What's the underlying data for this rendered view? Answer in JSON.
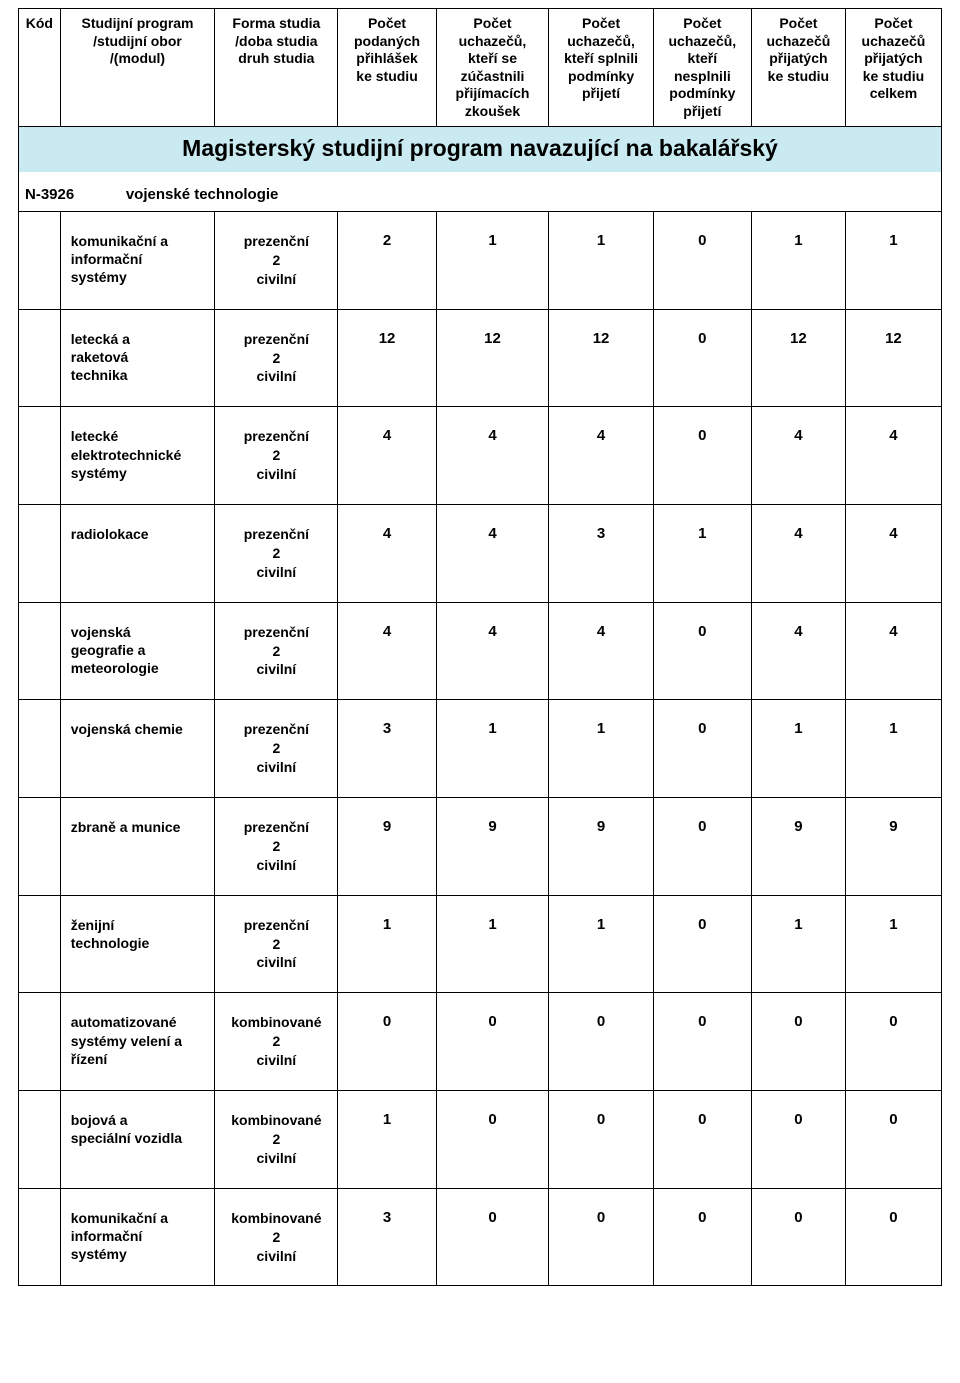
{
  "table": {
    "headers": [
      "Kód",
      "Studijní program\n/studijní obor\n/(modul)",
      "Forma studia\n/doba studia\ndruh studia",
      "Počet\npodaných\npřihlášek\nke studiu",
      "Počet\nuchazečů,\nkteří se\nzúčastnili\npřijímacích\nzkoušek",
      "Počet\nuchazečů,\nkteří splnili\npodmínky\npřijetí",
      "Počet\nuchazečů,\nkteří\nnesplnili\npodmínky\npřijetí",
      "Počet\nuchazečů\npřijatých\nke studiu",
      "Počet\nuchazečů\npřijatých\nke studiu\ncelkem"
    ],
    "section_title": "Magisterský studijní program navazující na bakalářský",
    "section_bg": "#c8eaf0",
    "program_code": "N-3926",
    "program_name": "vojenské technologie",
    "rows": [
      {
        "name": "komunikační a\ninformační\nsystémy",
        "form": "prezenční\n2\ncivilní",
        "vals": [
          "2",
          "1",
          "1",
          "0",
          "1",
          "1"
        ]
      },
      {
        "name": "letecká a\nraketová\ntechnika",
        "form": "prezenční\n2\ncivilní",
        "vals": [
          "12",
          "12",
          "12",
          "0",
          "12",
          "12"
        ]
      },
      {
        "name": "letecké\nelektrotechnické\nsystémy",
        "form": "prezenční\n2\ncivilní",
        "vals": [
          "4",
          "4",
          "4",
          "0",
          "4",
          "4"
        ]
      },
      {
        "name": "radiolokace",
        "form": "prezenční\n2\ncivilní",
        "vals": [
          "4",
          "4",
          "3",
          "1",
          "4",
          "4"
        ]
      },
      {
        "name": "vojenská\ngeografie a\nmeteorologie",
        "form": "prezenční\n2\ncivilní",
        "vals": [
          "4",
          "4",
          "4",
          "0",
          "4",
          "4"
        ]
      },
      {
        "name": "vojenská chemie",
        "form": "prezenční\n2\ncivilní",
        "vals": [
          "3",
          "1",
          "1",
          "0",
          "1",
          "1"
        ]
      },
      {
        "name": "zbraně a munice",
        "form": "prezenční\n2\ncivilní",
        "vals": [
          "9",
          "9",
          "9",
          "0",
          "9",
          "9"
        ]
      },
      {
        "name": "ženijní\ntechnologie",
        "form": "prezenční\n2\ncivilní",
        "vals": [
          "1",
          "1",
          "1",
          "0",
          "1",
          "1"
        ]
      },
      {
        "name": "automatizované\nsystémy velení a\nřízení",
        "form": "kombinované\n2\ncivilní",
        "vals": [
          "0",
          "0",
          "0",
          "0",
          "0",
          "0"
        ]
      },
      {
        "name": "bojová a\nspeciální vozidla",
        "form": "kombinované\n2\ncivilní",
        "vals": [
          "1",
          "0",
          "0",
          "0",
          "0",
          "0"
        ]
      },
      {
        "name": "komunikační a\ninformační\nsystémy",
        "form": "kombinované\n2\ncivilní",
        "vals": [
          "3",
          "0",
          "0",
          "0",
          "0",
          "0"
        ]
      }
    ]
  },
  "style": {
    "header_fontsize": 14,
    "section_fontsize": 23,
    "row_fontsize": 14,
    "border_color": "#000000",
    "background_color": "#ffffff",
    "text_color": "#000000",
    "font_family": "Arial"
  }
}
